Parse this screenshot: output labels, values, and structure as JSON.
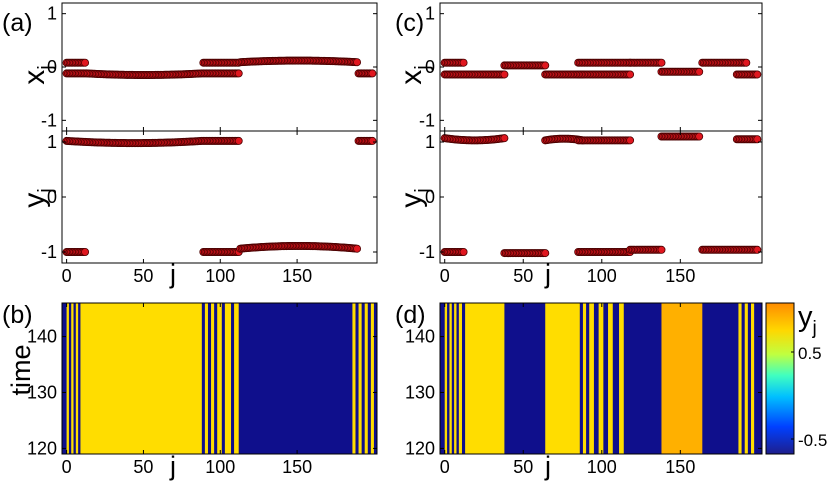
{
  "panel_labels": {
    "a": "(a)",
    "b": "(b)",
    "c": "(c)",
    "d": "(d)"
  },
  "axis_labels": {
    "x": "x",
    "y": "y",
    "sub": "j",
    "j": "j",
    "time": "time"
  },
  "colorbar": {
    "label": "y",
    "label_sub": "j",
    "ticks": [
      "0.5",
      "-0.5"
    ],
    "colors": [
      "#1e1e8c",
      "#0040ff",
      "#00c0ff",
      "#40ffc0",
      "#c0ff40",
      "#ffd700",
      "#ff8c00"
    ]
  },
  "colors": {
    "marker_fill": "#e0171f",
    "marker_edge": "#4a0000",
    "navy": "#0f0f8c",
    "yellow": "#ffdd00",
    "orange": "#ffb000"
  },
  "chart_data": [
    {
      "id": "a",
      "type": "scatter",
      "ylabel": "x_j",
      "xlim": [
        -3,
        202
      ],
      "ylim": [
        -1.2,
        1.2
      ],
      "yticks": [
        "1",
        "0",
        "-1"
      ],
      "segments": [
        {
          "from": 0,
          "to": 12,
          "value": 0.08
        },
        {
          "from": 0,
          "to": 12,
          "value": -0.12
        },
        {
          "from": 13,
          "to": 88,
          "value": -0.12,
          "curve": -0.03
        },
        {
          "from": 89,
          "to": 112,
          "value": 0.08
        },
        {
          "from": 89,
          "to": 112,
          "value": -0.12
        },
        {
          "from": 113,
          "to": 189,
          "value": 0.09,
          "curve": 0.03
        },
        {
          "from": 190,
          "to": 199,
          "value": -0.12
        }
      ]
    },
    {
      "id": "a2",
      "type": "scatter",
      "ylabel": "y_j",
      "xlim": [
        -3,
        202
      ],
      "ylim": [
        -1.2,
        1.2
      ],
      "xticks": [
        "0",
        "50",
        "100",
        "150"
      ],
      "yticks": [
        "1",
        "0",
        "-1"
      ],
      "segments": [
        {
          "from": 0,
          "to": 88,
          "value": 1.02,
          "curve": -0.04
        },
        {
          "from": 0,
          "to": 12,
          "value": -1.0
        },
        {
          "from": 89,
          "to": 112,
          "value": 1.02
        },
        {
          "from": 89,
          "to": 112,
          "value": -1.0
        },
        {
          "from": 113,
          "to": 189,
          "value": -0.94,
          "curve": 0.05
        },
        {
          "from": 190,
          "to": 199,
          "value": 1.02
        }
      ]
    },
    {
      "id": "c",
      "type": "scatter",
      "ylabel": "x_j",
      "xlim": [
        -3,
        202
      ],
      "ylim": [
        -1.2,
        1.2
      ],
      "yticks": [
        "1",
        "0",
        "-1"
      ],
      "segments": [
        {
          "from": 0,
          "to": 12,
          "value": 0.08
        },
        {
          "from": 0,
          "to": 38,
          "value": -0.14
        },
        {
          "from": 38,
          "to": 64,
          "value": 0.03
        },
        {
          "from": 64,
          "to": 88,
          "value": -0.14
        },
        {
          "from": 85,
          "to": 118,
          "value": 0.08
        },
        {
          "from": 85,
          "to": 118,
          "value": -0.14
        },
        {
          "from": 118,
          "to": 138,
          "value": 0.08
        },
        {
          "from": 138,
          "to": 162,
          "value": -0.09
        },
        {
          "from": 164,
          "to": 192,
          "value": 0.08
        },
        {
          "from": 186,
          "to": 199,
          "value": -0.14
        }
      ]
    },
    {
      "id": "c2",
      "type": "scatter",
      "ylabel": "y_j",
      "xlim": [
        -3,
        202
      ],
      "ylim": [
        -1.2,
        1.2
      ],
      "xticks": [
        "0",
        "50",
        "100",
        "150"
      ],
      "yticks": [
        "1",
        "0",
        "-1"
      ],
      "segments": [
        {
          "from": 0,
          "to": 38,
          "value": 1.07,
          "curve": -0.04
        },
        {
          "from": 0,
          "to": 12,
          "value": -1.0
        },
        {
          "from": 38,
          "to": 64,
          "value": -1.02
        },
        {
          "from": 64,
          "to": 88,
          "value": 1.03,
          "curve": 0.03
        },
        {
          "from": 85,
          "to": 118,
          "value": 1.03
        },
        {
          "from": 85,
          "to": 118,
          "value": -1.0
        },
        {
          "from": 118,
          "to": 138,
          "value": -0.96
        },
        {
          "from": 138,
          "to": 162,
          "value": 1.1
        },
        {
          "from": 164,
          "to": 199,
          "value": -0.96
        },
        {
          "from": 186,
          "to": 199,
          "value": 1.05
        }
      ]
    },
    {
      "id": "b",
      "type": "heatmap",
      "ylabel": "time",
      "xlabel": "j",
      "xlim": [
        -3,
        202
      ],
      "ylim": [
        119,
        146
      ],
      "xticks": [
        "0",
        "50",
        "100",
        "150"
      ],
      "yticks": [
        "140",
        "130",
        "120"
      ],
      "bands": [
        {
          "from": -3,
          "to": 0,
          "color": "navy"
        },
        {
          "from": 0,
          "to": 1.5,
          "color": "yellow"
        },
        {
          "from": 1.5,
          "to": 3,
          "color": "navy"
        },
        {
          "from": 3,
          "to": 4.5,
          "color": "yellow"
        },
        {
          "from": 4.5,
          "to": 6,
          "color": "navy"
        },
        {
          "from": 6,
          "to": 7.5,
          "color": "yellow"
        },
        {
          "from": 7.5,
          "to": 9,
          "color": "navy"
        },
        {
          "from": 9,
          "to": 88,
          "color": "yellow"
        },
        {
          "from": 88,
          "to": 90,
          "color": "navy"
        },
        {
          "from": 90,
          "to": 92,
          "color": "yellow"
        },
        {
          "from": 92,
          "to": 94,
          "color": "navy"
        },
        {
          "from": 94,
          "to": 96,
          "color": "yellow"
        },
        {
          "from": 96,
          "to": 98,
          "color": "navy"
        },
        {
          "from": 98,
          "to": 101,
          "color": "yellow"
        },
        {
          "from": 101,
          "to": 103,
          "color": "navy"
        },
        {
          "from": 103,
          "to": 107,
          "color": "yellow"
        },
        {
          "from": 107,
          "to": 109,
          "color": "navy"
        },
        {
          "from": 109,
          "to": 112,
          "color": "yellow"
        },
        {
          "from": 112,
          "to": 186,
          "color": "navy"
        },
        {
          "from": 186,
          "to": 188,
          "color": "yellow"
        },
        {
          "from": 188,
          "to": 190,
          "color": "navy"
        },
        {
          "from": 190,
          "to": 192,
          "color": "yellow"
        },
        {
          "from": 192,
          "to": 194,
          "color": "navy"
        },
        {
          "from": 194,
          "to": 196,
          "color": "yellow"
        },
        {
          "from": 196,
          "to": 198,
          "color": "navy"
        },
        {
          "from": 198,
          "to": 200,
          "color": "yellow"
        },
        {
          "from": 200,
          "to": 202,
          "color": "navy"
        }
      ]
    },
    {
      "id": "d",
      "type": "heatmap",
      "xlabel": "j",
      "xlim": [
        -3,
        202
      ],
      "ylim": [
        119,
        146
      ],
      "xticks": [
        "0",
        "50",
        "100",
        "150"
      ],
      "yticks": [
        "140",
        "130",
        "120"
      ],
      "bands": [
        {
          "from": -3,
          "to": 0,
          "color": "navy"
        },
        {
          "from": 0,
          "to": 1.5,
          "color": "yellow"
        },
        {
          "from": 1.5,
          "to": 3,
          "color": "navy"
        },
        {
          "from": 3,
          "to": 4.5,
          "color": "yellow"
        },
        {
          "from": 4.5,
          "to": 6,
          "color": "navy"
        },
        {
          "from": 6,
          "to": 7.5,
          "color": "yellow"
        },
        {
          "from": 7.5,
          "to": 9,
          "color": "navy"
        },
        {
          "from": 9,
          "to": 11,
          "color": "yellow"
        },
        {
          "from": 11,
          "to": 13,
          "color": "navy"
        },
        {
          "from": 13,
          "to": 38,
          "color": "yellow"
        },
        {
          "from": 38,
          "to": 64,
          "color": "navy"
        },
        {
          "from": 64,
          "to": 86,
          "color": "yellow"
        },
        {
          "from": 86,
          "to": 88,
          "color": "navy"
        },
        {
          "from": 88,
          "to": 90,
          "color": "yellow"
        },
        {
          "from": 90,
          "to": 92,
          "color": "navy"
        },
        {
          "from": 92,
          "to": 95,
          "color": "yellow"
        },
        {
          "from": 95,
          "to": 98,
          "color": "navy"
        },
        {
          "from": 98,
          "to": 101,
          "color": "yellow"
        },
        {
          "from": 101,
          "to": 104,
          "color": "navy"
        },
        {
          "from": 104,
          "to": 107,
          "color": "yellow"
        },
        {
          "from": 107,
          "to": 111,
          "color": "navy"
        },
        {
          "from": 111,
          "to": 114,
          "color": "yellow"
        },
        {
          "from": 114,
          "to": 138,
          "color": "navy"
        },
        {
          "from": 138,
          "to": 164,
          "color": "orange"
        },
        {
          "from": 164,
          "to": 187,
          "color": "navy"
        },
        {
          "from": 187,
          "to": 189,
          "color": "yellow"
        },
        {
          "from": 189,
          "to": 191,
          "color": "navy"
        },
        {
          "from": 191,
          "to": 193,
          "color": "yellow"
        },
        {
          "from": 193,
          "to": 195,
          "color": "navy"
        },
        {
          "from": 195,
          "to": 197,
          "color": "yellow"
        },
        {
          "from": 197,
          "to": 202,
          "color": "navy"
        }
      ]
    }
  ]
}
